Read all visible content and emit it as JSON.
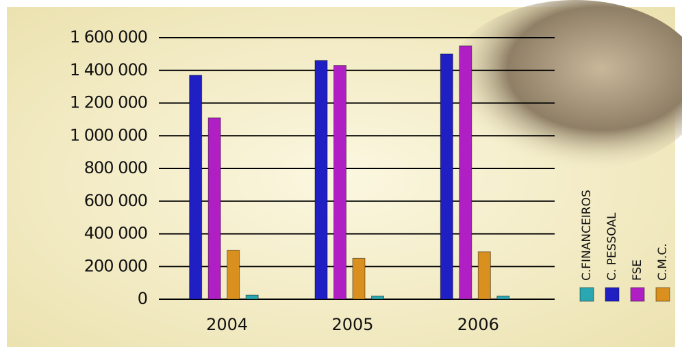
{
  "chart_data": {
    "type": "bar",
    "categories": [
      "2004",
      "2005",
      "2006"
    ],
    "series": [
      {
        "name": "C.FINANCEIROS",
        "color": "#2aa7b0",
        "values": [
          25000,
          20000,
          20000
        ]
      },
      {
        "name": "C. PESSOAL",
        "color": "#1f1fc4",
        "values": [
          1370000,
          1460000,
          1500000
        ]
      },
      {
        "name": "FSE",
        "color": "#b01fc4",
        "values": [
          1110000,
          1430000,
          1550000
        ]
      },
      {
        "name": "C.M.C.",
        "color": "#d9901f",
        "values": [
          300000,
          250000,
          290000
        ]
      }
    ],
    "ylim": [
      0,
      1600000
    ],
    "yticks": [
      0,
      {
        "value": 200000,
        "label": "200 000"
      },
      {
        "value": 400000,
        "label": "400 000"
      },
      {
        "value": 600000,
        "label": "600 000"
      },
      {
        "value": 800000,
        "label": "800 000"
      },
      {
        "value": 1000000,
        "label": "1 000 000"
      },
      {
        "value": 1200000,
        "label": "1 200 000"
      },
      {
        "value": 1400000,
        "label": "1 400 000"
      },
      {
        "value": 1600000,
        "label": "1 600 000"
      }
    ],
    "grid": true
  }
}
